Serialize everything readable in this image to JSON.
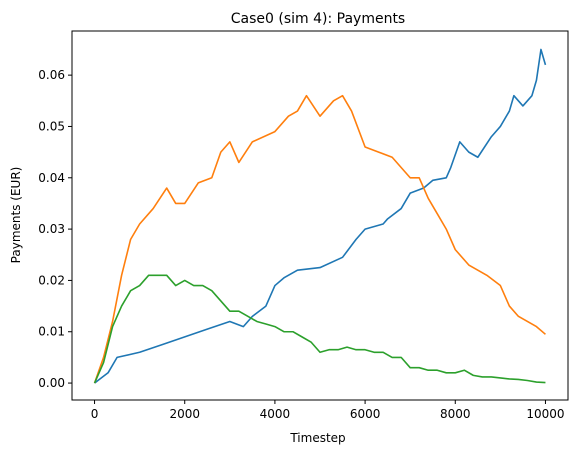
{
  "chart_data": {
    "type": "line",
    "title": "Case0 (sim 4): Payments",
    "xlabel": "Timestep",
    "ylabel": "Payments (EUR)",
    "xlim": [
      -500,
      10500
    ],
    "ylim": [
      -0.0033,
      0.0686
    ],
    "xticks": [
      0,
      2000,
      4000,
      6000,
      8000,
      10000
    ],
    "xtick_labels": [
      "0",
      "2000",
      "4000",
      "6000",
      "8000",
      "10000"
    ],
    "yticks": [
      0.0,
      0.01,
      0.02,
      0.03,
      0.04,
      0.05,
      0.06
    ],
    "ytick_labels": [
      "0.00",
      "0.01",
      "0.02",
      "0.03",
      "0.04",
      "0.05",
      "0.06"
    ],
    "grid": false,
    "legend": "none",
    "series": [
      {
        "color": "#1f77b4",
        "x": [
          0,
          300,
          500,
          1000,
          1500,
          2000,
          2500,
          3000,
          3300,
          3500,
          3800,
          4000,
          4200,
          4500,
          5000,
          5500,
          5800,
          6000,
          6400,
          6500,
          6800,
          7000,
          7300,
          7500,
          7800,
          7900,
          8100,
          8300,
          8500,
          8800,
          9000,
          9200,
          9300,
          9500,
          9700,
          9800,
          9900,
          10000
        ],
        "y": [
          0.0,
          0.002,
          0.005,
          0.006,
          0.0075,
          0.009,
          0.0105,
          0.012,
          0.011,
          0.013,
          0.015,
          0.019,
          0.0205,
          0.022,
          0.0225,
          0.0245,
          0.028,
          0.03,
          0.031,
          0.032,
          0.034,
          0.037,
          0.038,
          0.0395,
          0.04,
          0.042,
          0.047,
          0.045,
          0.044,
          0.048,
          0.05,
          0.053,
          0.056,
          0.054,
          0.056,
          0.059,
          0.065,
          0.062
        ]
      },
      {
        "color": "#ff7f0e",
        "x": [
          0,
          200,
          400,
          600,
          800,
          1000,
          1300,
          1600,
          1800,
          2000,
          2300,
          2600,
          2800,
          3000,
          3200,
          3500,
          4000,
          4300,
          4500,
          4700,
          5000,
          5300,
          5500,
          5700,
          6000,
          6300,
          6600,
          6800,
          7000,
          7200,
          7400,
          7600,
          7800,
          8000,
          8300,
          8500,
          8700,
          9000,
          9200,
          9400,
          9600,
          9800,
          10000
        ],
        "y": [
          0.0,
          0.005,
          0.012,
          0.021,
          0.028,
          0.031,
          0.034,
          0.038,
          0.035,
          0.035,
          0.039,
          0.04,
          0.045,
          0.047,
          0.043,
          0.047,
          0.049,
          0.052,
          0.053,
          0.056,
          0.052,
          0.055,
          0.056,
          0.053,
          0.046,
          0.045,
          0.044,
          0.042,
          0.04,
          0.04,
          0.036,
          0.033,
          0.03,
          0.026,
          0.023,
          0.022,
          0.021,
          0.019,
          0.015,
          0.013,
          0.012,
          0.011,
          0.0095
        ]
      },
      {
        "color": "#2ca02c",
        "x": [
          0,
          200,
          400,
          600,
          800,
          1000,
          1200,
          1400,
          1600,
          1800,
          2000,
          2200,
          2400,
          2600,
          2800,
          3000,
          3200,
          3400,
          3600,
          3800,
          4000,
          4200,
          4400,
          4600,
          4800,
          5000,
          5200,
          5400,
          5600,
          5800,
          6000,
          6200,
          6400,
          6600,
          6800,
          7000,
          7200,
          7400,
          7600,
          7800,
          8000,
          8200,
          8400,
          8600,
          8800,
          9000,
          9200,
          9400,
          9600,
          9800,
          10000
        ],
        "y": [
          0.0,
          0.004,
          0.011,
          0.015,
          0.018,
          0.019,
          0.021,
          0.021,
          0.021,
          0.019,
          0.02,
          0.019,
          0.019,
          0.018,
          0.016,
          0.014,
          0.014,
          0.013,
          0.012,
          0.0115,
          0.011,
          0.01,
          0.01,
          0.009,
          0.008,
          0.006,
          0.0065,
          0.0065,
          0.007,
          0.0065,
          0.0065,
          0.006,
          0.006,
          0.005,
          0.005,
          0.003,
          0.003,
          0.0025,
          0.0025,
          0.002,
          0.002,
          0.0025,
          0.0015,
          0.0012,
          0.0012,
          0.001,
          0.0008,
          0.0007,
          0.0005,
          0.0002,
          0.0001
        ]
      }
    ]
  }
}
